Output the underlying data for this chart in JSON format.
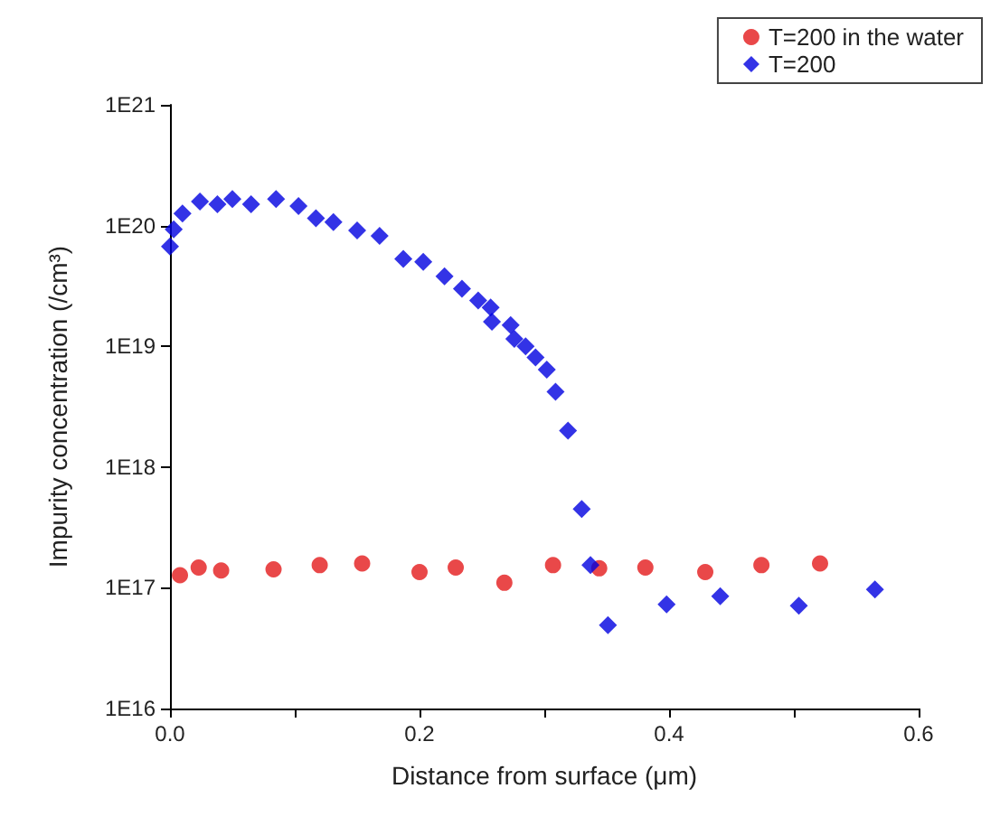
{
  "chart_data": {
    "type": "scatter",
    "xlabel": "Distance from surface (μm)",
    "ylabel": "Impurity concentration (/cm³)",
    "log": "y",
    "xlim": [
      0,
      0.6
    ],
    "xticks": [
      {
        "value": 0,
        "label": "0.0"
      },
      {
        "value": 0.1,
        "label": null
      },
      {
        "value": 0.2,
        "label": "0.2"
      },
      {
        "value": 0.3,
        "label": null
      },
      {
        "value": 0.4,
        "label": "0.4"
      },
      {
        "value": 0.5,
        "label": null
      },
      {
        "value": 0.6,
        "label": "0.6"
      }
    ],
    "ylim": [
      1e+16,
      1e+21
    ],
    "yticks": [
      {
        "value": 1e+16,
        "label": "1E16"
      },
      {
        "value": 1e+17,
        "label": "1E17"
      },
      {
        "value": 1e+18,
        "label": "1E18"
      },
      {
        "value": 1e+19,
        "label": "1E19"
      },
      {
        "value": 1e+20,
        "label": "1E20"
      },
      {
        "value": 1e+21,
        "label": "1E21"
      }
    ],
    "grid": false,
    "legend": "top right",
    "series": [
      {
        "name": "T=200 in the water",
        "color": "#e41a1c",
        "marker": "circle",
        "x": [
          0.008,
          0.023,
          0.041,
          0.083,
          0.12,
          0.154,
          0.2,
          0.229,
          0.268,
          0.307,
          0.344,
          0.381,
          0.429,
          0.474,
          0.521
        ],
        "values": [
          1.27e+17,
          1.47e+17,
          1.39e+17,
          1.42e+17,
          1.54e+17,
          1.59e+17,
          1.35e+17,
          1.47e+17,
          1.1e+17,
          1.54e+17,
          1.45e+17,
          1.47e+17,
          1.35e+17,
          1.54e+17,
          1.59e+17
        ]
      },
      {
        "name": "T=200",
        "color": "#0000e0",
        "marker": "diamond",
        "x": [
          0,
          0.003,
          0.01,
          0.024,
          0.038,
          0.05,
          0.065,
          0.085,
          0.103,
          0.117,
          0.131,
          0.15,
          0.168,
          0.187,
          0.203,
          0.22,
          0.234,
          0.247,
          0.257,
          0.258,
          0.273,
          0.276,
          0.285,
          0.293,
          0.302,
          0.309,
          0.319,
          0.33,
          0.337,
          0.351,
          0.398,
          0.441,
          0.504,
          0.565
        ],
        "values": [
          6.7e+19,
          9.3e+19,
          1.26e+20,
          1.58e+20,
          1.5e+20,
          1.66e+20,
          1.5e+20,
          1.66e+20,
          1.45e+20,
          1.15e+20,
          1.07e+20,
          9.1e+19,
          8.2e+19,
          5.3e+19,
          5e+19,
          3.8e+19,
          3e+19,
          2.4e+19,
          2.1e+19,
          1.6e+19,
          1.5e+19,
          1.15e+19,
          1e+19,
          8.1e+18,
          6.4e+18,
          4.2e+18,
          2e+18,
          4.5e+17,
          1.54e+17,
          4.9e+16,
          7.3e+16,
          8.5e+16,
          7.1e+16,
          9.7e+16
        ]
      }
    ]
  }
}
